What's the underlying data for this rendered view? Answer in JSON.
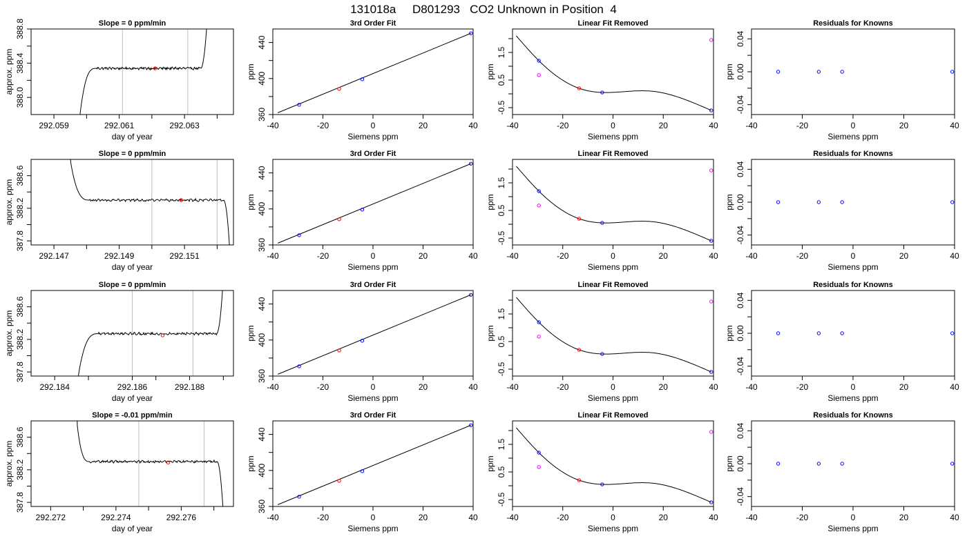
{
  "page_title": "131018a     D801293   CO2 Unknown in Position  4",
  "colors": {
    "blue": "#0000ff",
    "red": "#ff0000",
    "magenta": "#ff00ff",
    "grid": "#bebebe",
    "line": "#000000"
  },
  "chart_data": [
    {
      "row": 1,
      "panel": "trace",
      "type": "line",
      "title": "Slope =  0  ppm/min",
      "xlabel": "day of year",
      "ylabel": "approx. ppm",
      "xlim": [
        292.0583,
        292.0645
      ],
      "ylim": [
        387.8,
        388.8
      ],
      "xticks": [
        292.059,
        292.061,
        292.063
      ],
      "xtick_labels": [
        "292.059",
        "292.061",
        "292.063"
      ],
      "xminor": [
        292.06,
        292.062,
        292.064
      ],
      "yticks": [
        388.0,
        388.4,
        388.8
      ],
      "ytick_labels": [
        "388.0",
        "388.4",
        "388.8"
      ],
      "yminor": [
        388.2,
        388.6
      ],
      "vlines": [
        292.0611,
        292.0631
      ],
      "trace": {
        "x0": 292.0598,
        "rise_end": 292.0603,
        "start_val": 387.8,
        "plateau": 388.34,
        "noise": 0.012,
        "x1": 292.0635,
        "end_val": 388.8
      },
      "marker": {
        "x": 292.0621,
        "y": 388.34,
        "color": "red"
      }
    },
    {
      "row": 1,
      "panel": "fit",
      "type": "scatter",
      "title": "3rd Order Fit",
      "xlabel": "Siemens ppm",
      "ylabel": "ppm",
      "xlim": [
        -40,
        40
      ],
      "ylim": [
        360,
        455
      ],
      "xticks": [
        -40,
        -20,
        0,
        20,
        40
      ],
      "yticks": [
        360,
        400,
        440
      ],
      "yminor": [
        380,
        420
      ],
      "line_from": [
        -38,
        362
      ],
      "points": [
        {
          "x": -29.5,
          "y": 370.8,
          "color": "blue"
        },
        {
          "x": -13.5,
          "y": 388.5,
          "color": "red"
        },
        {
          "x": -4.3,
          "y": 399.2,
          "color": "blue"
        },
        {
          "x": 39.1,
          "y": 450.2,
          "color": "blue"
        }
      ]
    },
    {
      "row": 1,
      "panel": "linear_removed",
      "type": "scatter",
      "title": "Linear Fit Removed",
      "xlabel": "Siemens ppm",
      "ylabel": "ppm",
      "xlim": [
        -40,
        40
      ],
      "ylim": [
        -0.75,
        2.35
      ],
      "xticks": [
        -40,
        -20,
        0,
        20,
        40
      ],
      "yticks": [
        -0.5,
        0.5,
        1.5
      ],
      "yminor": [
        0.0,
        1.0,
        2.0
      ],
      "curve_points": [
        [
          -38.5,
          2.1
        ],
        [
          -29.5,
          1.2
        ],
        [
          -13.5,
          0.2
        ],
        [
          -4.3,
          0.05
        ],
        [
          15,
          0.1
        ],
        [
          39.1,
          -0.6
        ]
      ],
      "points": [
        {
          "x": -29.5,
          "y": 1.2,
          "color": "blue"
        },
        {
          "x": -29.5,
          "y": 0.68,
          "color": "magenta"
        },
        {
          "x": -13.5,
          "y": 0.2,
          "color": "red"
        },
        {
          "x": -4.3,
          "y": 0.05,
          "color": "blue"
        },
        {
          "x": 39.1,
          "y": -0.6,
          "color": "blue"
        },
        {
          "x": 39.1,
          "y": 1.95,
          "color": "magenta"
        }
      ]
    },
    {
      "row": 1,
      "panel": "residuals",
      "type": "scatter",
      "title": "Residuals for Knowns",
      "xlabel": "Siemens ppm",
      "ylabel": "ppm",
      "xlim": [
        -40,
        40
      ],
      "ylim": [
        -0.052,
        0.052
      ],
      "xticks": [
        -40,
        -20,
        0,
        20,
        40
      ],
      "yticks": [
        -0.04,
        0.0,
        0.04
      ],
      "ytick_labels": [
        "-0.04",
        "0.00",
        "0.04"
      ],
      "yminor": [
        -0.02,
        0.02
      ],
      "points": [
        {
          "x": -29.5,
          "y": 0,
          "color": "blue"
        },
        {
          "x": -13.5,
          "y": 0,
          "color": "blue"
        },
        {
          "x": -4.3,
          "y": 0,
          "color": "blue"
        },
        {
          "x": 39.1,
          "y": 0,
          "color": "blue"
        }
      ]
    },
    {
      "row": 2,
      "panel": "trace",
      "type": "line",
      "title": "Slope =  0  ppm/min",
      "xlabel": "day of year",
      "ylabel": "approx. ppm",
      "xlim": [
        292.1463,
        292.1525
      ],
      "ylim": [
        387.75,
        388.8
      ],
      "xticks": [
        292.147,
        292.149,
        292.151
      ],
      "xtick_labels": [
        "292.147",
        "292.149",
        "292.151"
      ],
      "xminor": [
        292.148,
        292.15,
        292.152
      ],
      "yticks": [
        387.8,
        388.2,
        388.6
      ],
      "ytick_labels": [
        "387.8",
        "388.2",
        "388.6"
      ],
      "yminor": [
        388.0,
        388.4
      ],
      "vlines": [
        292.15,
        292.152
      ],
      "trace": {
        "x0": 292.1475,
        "rise_end": 292.1481,
        "start_val": 388.8,
        "plateau": 388.3,
        "noise": 0.012,
        "x1": 292.1522,
        "end_val": 387.75
      },
      "marker": {
        "x": 292.1509,
        "y": 388.3,
        "color": "red"
      }
    },
    {
      "row": 2,
      "panel": "fit",
      "type": "scatter",
      "title": "3rd Order Fit",
      "xlabel": "Siemens ppm",
      "ylabel": "ppm",
      "xlim": [
        -40,
        40
      ],
      "ylim": [
        360,
        455
      ],
      "xticks": [
        -40,
        -20,
        0,
        20,
        40
      ],
      "yticks": [
        360,
        400,
        440
      ],
      "yminor": [
        380,
        420
      ],
      "line_from": [
        -38,
        362
      ],
      "points": [
        {
          "x": -29.5,
          "y": 370.8,
          "color": "blue"
        },
        {
          "x": -13.5,
          "y": 388.5,
          "color": "red"
        },
        {
          "x": -4.3,
          "y": 399.2,
          "color": "blue"
        },
        {
          "x": 39.1,
          "y": 450.2,
          "color": "blue"
        }
      ]
    },
    {
      "row": 2,
      "panel": "linear_removed",
      "type": "scatter",
      "title": "Linear Fit Removed",
      "xlabel": "Siemens ppm",
      "ylabel": "ppm",
      "xlim": [
        -40,
        40
      ],
      "ylim": [
        -0.75,
        2.35
      ],
      "xticks": [
        -40,
        -20,
        0,
        20,
        40
      ],
      "yticks": [
        -0.5,
        0.5,
        1.5
      ],
      "yminor": [
        0.0,
        1.0,
        2.0
      ],
      "curve_points": [
        [
          -38.5,
          2.1
        ],
        [
          -29.5,
          1.2
        ],
        [
          -13.5,
          0.2
        ],
        [
          -4.3,
          0.05
        ],
        [
          15,
          0.1
        ],
        [
          39.1,
          -0.6
        ]
      ],
      "points": [
        {
          "x": -29.5,
          "y": 1.2,
          "color": "blue"
        },
        {
          "x": -29.5,
          "y": 0.68,
          "color": "magenta"
        },
        {
          "x": -13.5,
          "y": 0.2,
          "color": "red"
        },
        {
          "x": -4.3,
          "y": 0.05,
          "color": "blue"
        },
        {
          "x": 39.1,
          "y": -0.6,
          "color": "blue"
        },
        {
          "x": 39.1,
          "y": 1.95,
          "color": "magenta"
        }
      ]
    },
    {
      "row": 2,
      "panel": "residuals",
      "type": "scatter",
      "title": "Residuals for Knowns",
      "xlabel": "Siemens ppm",
      "ylabel": "ppm",
      "xlim": [
        -40,
        40
      ],
      "ylim": [
        -0.052,
        0.052
      ],
      "xticks": [
        -40,
        -20,
        0,
        20,
        40
      ],
      "yticks": [
        -0.04,
        0.0,
        0.04
      ],
      "ytick_labels": [
        "-0.04",
        "0.00",
        "0.04"
      ],
      "yminor": [
        -0.02,
        0.02
      ],
      "points": [
        {
          "x": -29.5,
          "y": 0,
          "color": "blue"
        },
        {
          "x": -13.5,
          "y": 0,
          "color": "blue"
        },
        {
          "x": -4.3,
          "y": 0,
          "color": "blue"
        },
        {
          "x": 39.1,
          "y": 0,
          "color": "blue"
        }
      ]
    },
    {
      "row": 3,
      "panel": "trace",
      "type": "line",
      "title": "Slope =  0  ppm/min",
      "xlabel": "day of year",
      "ylabel": "approx. ppm",
      "xlim": [
        292.1833,
        292.1893
      ],
      "ylim": [
        387.75,
        388.8
      ],
      "xticks": [
        292.184,
        292.1863,
        292.188
      ],
      "xtick_labels": [
        "292.184",
        "292.186",
        "292.188"
      ],
      "xminor": [
        292.185,
        292.187,
        292.189
      ],
      "yticks": [
        387.8,
        388.2,
        388.6
      ],
      "ytick_labels": [
        "387.8",
        "388.2",
        "388.6"
      ],
      "yminor": [
        388.0,
        388.4
      ],
      "vlines": [
        292.1863,
        292.1881
      ],
      "trace": {
        "x0": 292.1847,
        "rise_end": 292.1853,
        "start_val": 387.75,
        "plateau": 388.27,
        "noise": 0.012,
        "x1": 292.1888,
        "end_val": 388.8
      },
      "marker": {
        "x": 292.1872,
        "y": 388.25,
        "color": "red"
      }
    },
    {
      "row": 3,
      "panel": "fit",
      "type": "scatter",
      "title": "3rd Order Fit",
      "xlabel": "Siemens ppm",
      "ylabel": "ppm",
      "xlim": [
        -40,
        40
      ],
      "ylim": [
        360,
        455
      ],
      "xticks": [
        -40,
        -20,
        0,
        20,
        40
      ],
      "yticks": [
        360,
        400,
        440
      ],
      "yminor": [
        380,
        420
      ],
      "line_from": [
        -38,
        362
      ],
      "points": [
        {
          "x": -29.5,
          "y": 370.8,
          "color": "blue"
        },
        {
          "x": -13.5,
          "y": 388.5,
          "color": "red"
        },
        {
          "x": -4.3,
          "y": 399.2,
          "color": "blue"
        },
        {
          "x": 39.1,
          "y": 450.2,
          "color": "blue"
        }
      ]
    },
    {
      "row": 3,
      "panel": "linear_removed",
      "type": "scatter",
      "title": "Linear Fit Removed",
      "xlabel": "Siemens ppm",
      "ylabel": "ppm",
      "xlim": [
        -40,
        40
      ],
      "ylim": [
        -0.75,
        2.35
      ],
      "xticks": [
        -40,
        -20,
        0,
        20,
        40
      ],
      "yticks": [
        -0.5,
        0.5,
        1.5
      ],
      "yminor": [
        0.0,
        1.0,
        2.0
      ],
      "curve_points": [
        [
          -38.5,
          2.1
        ],
        [
          -29.5,
          1.2
        ],
        [
          -13.5,
          0.2
        ],
        [
          -4.3,
          0.05
        ],
        [
          15,
          0.1
        ],
        [
          39.1,
          -0.6
        ]
      ],
      "points": [
        {
          "x": -29.5,
          "y": 1.2,
          "color": "blue"
        },
        {
          "x": -29.5,
          "y": 0.68,
          "color": "magenta"
        },
        {
          "x": -13.5,
          "y": 0.2,
          "color": "red"
        },
        {
          "x": -4.3,
          "y": 0.05,
          "color": "blue"
        },
        {
          "x": 39.1,
          "y": -0.6,
          "color": "blue"
        },
        {
          "x": 39.1,
          "y": 1.95,
          "color": "magenta"
        }
      ]
    },
    {
      "row": 3,
      "panel": "residuals",
      "type": "scatter",
      "title": "Residuals for Knowns",
      "xlabel": "Siemens ppm",
      "ylabel": "ppm",
      "xlim": [
        -40,
        40
      ],
      "ylim": [
        -0.052,
        0.052
      ],
      "xticks": [
        -40,
        -20,
        0,
        20,
        40
      ],
      "yticks": [
        -0.04,
        0.0,
        0.04
      ],
      "ytick_labels": [
        "-0.04",
        "0.00",
        "0.04"
      ],
      "yminor": [
        -0.02,
        0.02
      ],
      "points": [
        {
          "x": -29.5,
          "y": 0,
          "color": "blue"
        },
        {
          "x": -13.5,
          "y": 0,
          "color": "blue"
        },
        {
          "x": -4.3,
          "y": 0,
          "color": "blue"
        },
        {
          "x": 39.1,
          "y": 0,
          "color": "blue"
        }
      ]
    },
    {
      "row": 4,
      "panel": "trace",
      "type": "line",
      "title": "Slope =  -0.01  ppm/min",
      "xlabel": "day of year",
      "ylabel": "approx. ppm",
      "xlim": [
        292.2716,
        292.2778
      ],
      "ylim": [
        387.75,
        388.8
      ],
      "xticks": [
        292.2722,
        292.2742,
        292.2762
      ],
      "xtick_labels": [
        "292.272",
        "292.274",
        "292.276"
      ],
      "xminor": [
        292.2732,
        292.2752,
        292.2772
      ],
      "yticks": [
        387.8,
        388.2,
        388.6
      ],
      "ytick_labels": [
        "387.8",
        "388.2",
        "388.6"
      ],
      "yminor": [
        388.0,
        388.4
      ],
      "vlines": [
        292.2749,
        292.2769
      ],
      "trace": {
        "x0": 292.273,
        "rise_end": 292.2734,
        "start_val": 388.8,
        "plateau": 388.3,
        "noise": 0.012,
        "x1": 292.2773,
        "end_val": 387.75
      },
      "marker": {
        "x": 292.2758,
        "y": 388.29,
        "color": "red"
      }
    },
    {
      "row": 4,
      "panel": "fit",
      "type": "scatter",
      "title": "3rd Order Fit",
      "xlabel": "Siemens ppm",
      "ylabel": "ppm",
      "xlim": [
        -40,
        40
      ],
      "ylim": [
        360,
        455
      ],
      "xticks": [
        -40,
        -20,
        0,
        20,
        40
      ],
      "yticks": [
        360,
        400,
        440
      ],
      "yminor": [
        380,
        420
      ],
      "line_from": [
        -38,
        362
      ],
      "points": [
        {
          "x": -29.5,
          "y": 370.8,
          "color": "blue"
        },
        {
          "x": -13.5,
          "y": 388.5,
          "color": "red"
        },
        {
          "x": -4.3,
          "y": 399.2,
          "color": "blue"
        },
        {
          "x": 39.1,
          "y": 450.2,
          "color": "blue"
        }
      ]
    },
    {
      "row": 4,
      "panel": "linear_removed",
      "type": "scatter",
      "title": "Linear Fit Removed",
      "xlabel": "Siemens ppm",
      "ylabel": "ppm",
      "xlim": [
        -40,
        40
      ],
      "ylim": [
        -0.75,
        2.35
      ],
      "xticks": [
        -40,
        -20,
        0,
        20,
        40
      ],
      "yticks": [
        -0.5,
        0.5,
        1.5
      ],
      "yminor": [
        0.0,
        1.0,
        2.0
      ],
      "curve_points": [
        [
          -38.5,
          2.1
        ],
        [
          -29.5,
          1.2
        ],
        [
          -13.5,
          0.2
        ],
        [
          -4.3,
          0.05
        ],
        [
          15,
          0.1
        ],
        [
          39.1,
          -0.6
        ]
      ],
      "points": [
        {
          "x": -29.5,
          "y": 1.2,
          "color": "blue"
        },
        {
          "x": -29.5,
          "y": 0.68,
          "color": "magenta"
        },
        {
          "x": -13.5,
          "y": 0.2,
          "color": "red"
        },
        {
          "x": -4.3,
          "y": 0.05,
          "color": "blue"
        },
        {
          "x": 39.1,
          "y": -0.6,
          "color": "blue"
        },
        {
          "x": 39.1,
          "y": 1.95,
          "color": "magenta"
        }
      ]
    },
    {
      "row": 4,
      "panel": "residuals",
      "type": "scatter",
      "title": "Residuals for Knowns",
      "xlabel": "Siemens ppm",
      "ylabel": "ppm",
      "xlim": [
        -40,
        40
      ],
      "ylim": [
        -0.052,
        0.052
      ],
      "xticks": [
        -40,
        -20,
        0,
        20,
        40
      ],
      "yticks": [
        -0.04,
        0.0,
        0.04
      ],
      "ytick_labels": [
        "-0.04",
        "0.00",
        "0.04"
      ],
      "yminor": [
        -0.02,
        0.02
      ],
      "points": [
        {
          "x": -29.5,
          "y": 0,
          "color": "blue"
        },
        {
          "x": -13.5,
          "y": 0,
          "color": "blue"
        },
        {
          "x": -4.3,
          "y": 0,
          "color": "blue"
        },
        {
          "x": 39.1,
          "y": 0,
          "color": "blue"
        }
      ]
    }
  ]
}
